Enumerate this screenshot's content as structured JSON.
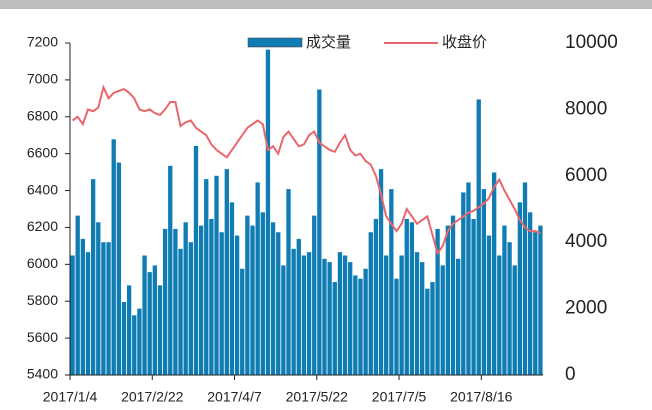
{
  "chart_data": {
    "type": "bar-line",
    "categories": [
      "2017/1/4",
      null,
      null,
      null,
      null,
      null,
      null,
      null,
      null,
      null,
      null,
      null,
      null,
      null,
      null,
      null,
      "2017/2/22",
      null,
      null,
      null,
      null,
      null,
      null,
      null,
      null,
      null,
      null,
      null,
      null,
      null,
      null,
      null,
      "2017/4/7",
      null,
      null,
      null,
      null,
      null,
      null,
      null,
      null,
      null,
      null,
      null,
      null,
      null,
      null,
      null,
      "2017/5/22",
      null,
      null,
      null,
      null,
      null,
      null,
      null,
      null,
      null,
      null,
      null,
      null,
      null,
      null,
      null,
      "2017/7/5",
      null,
      null,
      null,
      null,
      null,
      null,
      null,
      null,
      null,
      null,
      null,
      null,
      null,
      null,
      null,
      "2017/8/16",
      null,
      null,
      null,
      null,
      null,
      null,
      null,
      null,
      null,
      null,
      null
    ],
    "series": [
      {
        "name": "成交量",
        "color": "#0f7db4",
        "axis": "y2",
        "kind": "bar",
        "values": [
          3600,
          4800,
          4100,
          3700,
          5900,
          4600,
          4000,
          4000,
          7100,
          6400,
          2200,
          2700,
          1800,
          2000,
          3600,
          3100,
          3300,
          2700,
          4400,
          6300,
          4400,
          3800,
          4600,
          4000,
          6900,
          4500,
          5900,
          4700,
          6000,
          4300,
          6200,
          5200,
          4200,
          3200,
          4800,
          4500,
          5800,
          4900,
          9800,
          4600,
          4300,
          3300,
          5600,
          3800,
          4100,
          3600,
          3700,
          4800,
          8600,
          3500,
          3400,
          2800,
          3700,
          3600,
          3400,
          3000,
          2900,
          3200,
          4300,
          4700,
          6200,
          3600,
          5600,
          2900,
          3600,
          4700,
          4600,
          3700,
          3400,
          2600,
          2800,
          4400,
          3300,
          4500,
          4800,
          3500,
          5500,
          5800,
          4700,
          8300,
          5600,
          4200,
          6100,
          3600,
          4500,
          4000,
          3300,
          5200,
          5800,
          4900,
          4300,
          4500
        ]
      },
      {
        "name": "收盘价",
        "color": "#e9676c",
        "axis": "y",
        "kind": "line",
        "values": [
          6780,
          6800,
          6760,
          6840,
          6830,
          6850,
          6960,
          6900,
          6930,
          6940,
          6950,
          6930,
          6900,
          6840,
          6830,
          6840,
          6820,
          6810,
          6840,
          6880,
          6880,
          6750,
          6770,
          6780,
          6740,
          6720,
          6700,
          6650,
          6620,
          6600,
          6580,
          6620,
          6660,
          6700,
          6740,
          6760,
          6780,
          6760,
          6620,
          6640,
          6600,
          6690,
          6720,
          6680,
          6640,
          6650,
          6700,
          6720,
          6660,
          6640,
          6620,
          6610,
          6660,
          6700,
          6620,
          6590,
          6600,
          6560,
          6540,
          6480,
          6380,
          6260,
          6220,
          6180,
          6220,
          6300,
          6260,
          6220,
          6240,
          6260,
          6160,
          6060,
          6100,
          6180,
          6220,
          6240,
          6260,
          6280,
          6290,
          6310,
          6330,
          6360,
          6420,
          6460,
          6400,
          6350,
          6300,
          6240,
          6200,
          6180,
          6180,
          6170
        ]
      }
    ],
    "ylim": [
      5400,
      7200
    ],
    "yticks": [
      5400,
      5600,
      5800,
      6000,
      6200,
      6400,
      6600,
      6800,
      7000,
      7200
    ],
    "y2lim": [
      0,
      10000
    ],
    "y2ticks": [
      0,
      2000,
      4000,
      6000,
      8000,
      10000
    ],
    "legend": "top"
  }
}
